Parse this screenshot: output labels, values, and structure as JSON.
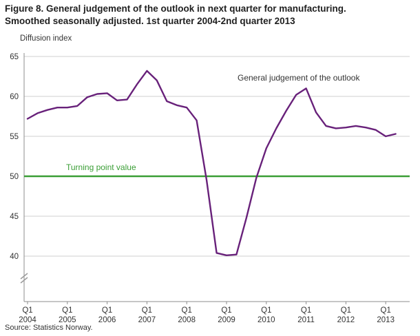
{
  "figure": {
    "title_line1": "Figure 8. General judgement of the outlook in next quarter for manufacturing.",
    "title_line2": "Smoothed seasonally adjusted. 1st quarter 2004-2nd quarter 2013",
    "source": "Source: Statistics Norway."
  },
  "chart_data": {
    "type": "line",
    "ylabel": "Diffusion index",
    "ylim": [
      40,
      65
    ],
    "yticks": [
      65,
      60,
      55,
      50,
      45,
      40
    ],
    "grid": "horizontal",
    "axis_break": true,
    "x_axis": {
      "tick_label": "Q1",
      "years": [
        2004,
        2005,
        2006,
        2007,
        2008,
        2009,
        2010,
        2011,
        2012,
        2013
      ]
    },
    "turning_point": {
      "label": "Turning point value",
      "value": 50,
      "color": "#3a9e35"
    },
    "series": [
      {
        "name": "General judgement of the outlook",
        "color": "#68217a",
        "start": "2004 Q1",
        "end": "2013 Q2",
        "values": [
          57.2,
          57.9,
          58.3,
          58.6,
          58.6,
          58.8,
          59.9,
          60.3,
          60.4,
          59.5,
          59.6,
          61.5,
          63.2,
          62.0,
          59.4,
          58.9,
          58.6,
          57.0,
          49.5,
          40.4,
          40.1,
          40.2,
          44.8,
          49.8,
          53.5,
          56.0,
          58.2,
          60.2,
          61.0,
          58.0,
          56.3,
          56.0,
          56.1,
          56.3,
          56.1,
          55.8,
          55.0,
          55.3
        ]
      }
    ]
  }
}
